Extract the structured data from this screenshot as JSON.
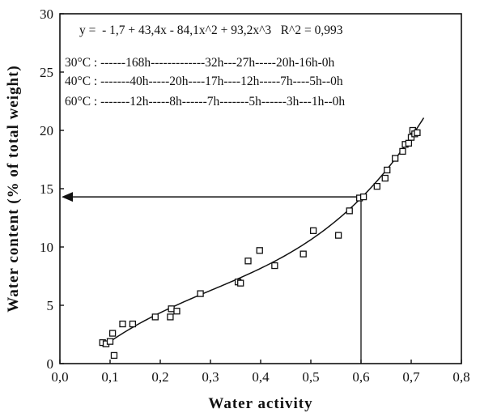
{
  "chart_data": {
    "type": "scatter",
    "title": "",
    "xlabel": "Water activity",
    "ylabel": "Water content (% of total weight)",
    "xlim": [
      0.0,
      0.8
    ],
    "ylim": [
      0,
      30
    ],
    "x_ticks": [
      "0,0",
      "0,1",
      "0,2",
      "0,3",
      "0,4",
      "0,5",
      "0,6",
      "0,7",
      "0,8"
    ],
    "y_ticks": [
      "0",
      "5",
      "10",
      "15",
      "20",
      "25",
      "30"
    ],
    "annotations": {
      "equation": "y =  - 1,7 + 43,4x - 84,1x^2 + 93,2x^3   R^2 = 0,993",
      "row_30": "30°C : ------168h-------------32h---27h-----20h-16h-0h",
      "row_40": "40°C : -------40h-----20h----17h----12h-----7h----5h--0h",
      "row_60": "60°C : -------12h-----8h------7h-------5h------3h---1h--0h"
    },
    "reference_point": {
      "x": 0.6,
      "y": 14.3
    },
    "fit": {
      "form": "cubic",
      "coefficients": [
        -1.7,
        43.4,
        -84.1,
        93.2
      ],
      "r2": 0.993,
      "x_range": [
        0.085,
        0.725
      ]
    },
    "series": [
      {
        "x": [
          0.085,
          0.092,
          0.1,
          0.105,
          0.108,
          0.125,
          0.145,
          0.19,
          0.22,
          0.222,
          0.233,
          0.28,
          0.355,
          0.36,
          0.375,
          0.398,
          0.428,
          0.485,
          0.505,
          0.555,
          0.577,
          0.597,
          0.605,
          0.632,
          0.648,
          0.652,
          0.668,
          0.683,
          0.688,
          0.695,
          0.7,
          0.703,
          0.707,
          0.712
        ],
        "y": [
          1.8,
          1.7,
          1.9,
          2.6,
          0.7,
          3.4,
          3.4,
          4.0,
          4.0,
          4.7,
          4.5,
          6.0,
          7.0,
          6.9,
          8.8,
          9.7,
          8.4,
          9.4,
          11.4,
          11.0,
          13.1,
          14.2,
          14.3,
          15.2,
          15.9,
          16.6,
          17.6,
          18.2,
          18.8,
          18.9,
          19.4,
          20.0,
          19.7,
          19.8
        ]
      }
    ]
  }
}
